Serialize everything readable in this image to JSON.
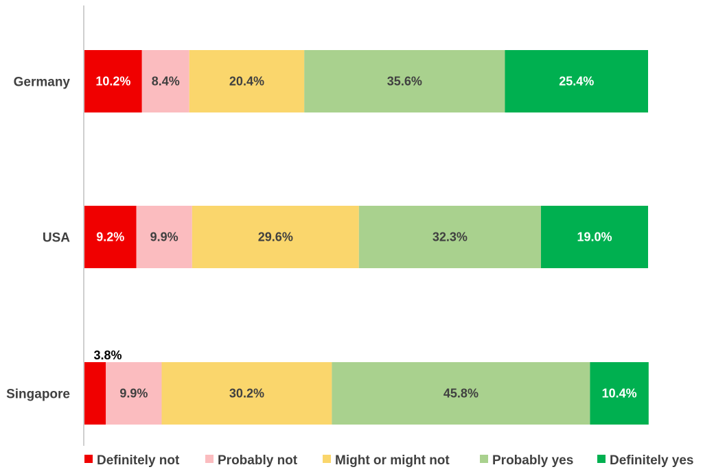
{
  "chart_data": {
    "type": "bar",
    "orientation": "horizontal",
    "stacked": true,
    "title": "",
    "xlabel": "",
    "ylabel": "",
    "xlim": [
      0,
      100
    ],
    "grid": false,
    "legend_position": "bottom",
    "categories": [
      "Germany",
      "USA",
      "Singapore"
    ],
    "series": [
      {
        "name": "Definitely not",
        "color": "#f00000",
        "values": [
          10.2,
          9.2,
          3.8
        ],
        "labels": [
          "10.2%",
          "9.2%",
          "3.8%"
        ],
        "label_colors": [
          "#ffffff",
          "#ffffff",
          "#000000"
        ],
        "label_outside": [
          false,
          false,
          true
        ]
      },
      {
        "name": "Probably not",
        "color": "#fbbcbf",
        "values": [
          8.4,
          9.9,
          9.9
        ],
        "labels": [
          "8.4%",
          "9.9%",
          "9.9%"
        ],
        "label_colors": [
          "#404040",
          "#404040",
          "#404040"
        ],
        "label_outside": [
          false,
          false,
          false
        ]
      },
      {
        "name": "Might or might not",
        "color": "#fad66c",
        "values": [
          20.4,
          29.6,
          30.2
        ],
        "labels": [
          "20.4%",
          "29.6%",
          "30.2%"
        ],
        "label_colors": [
          "#404040",
          "#404040",
          "#404040"
        ],
        "label_outside": [
          false,
          false,
          false
        ]
      },
      {
        "name": "Probably yes",
        "color": "#a9d18e",
        "values": [
          35.6,
          32.3,
          45.8
        ],
        "labels": [
          "35.6%",
          "32.3%",
          "45.8%"
        ],
        "label_colors": [
          "#404040",
          "#404040",
          "#404040"
        ],
        "label_outside": [
          false,
          false,
          false
        ]
      },
      {
        "name": "Definitely yes",
        "color": "#00b050",
        "values": [
          25.4,
          19.0,
          10.4
        ],
        "labels": [
          "25.4%",
          "19.0%",
          "10.4%"
        ],
        "label_colors": [
          "#ffffff",
          "#ffffff",
          "#ffffff"
        ],
        "label_outside": [
          false,
          false,
          false
        ]
      }
    ]
  },
  "colors": {
    "axis": "#bfbfbf",
    "text": "#404040"
  }
}
